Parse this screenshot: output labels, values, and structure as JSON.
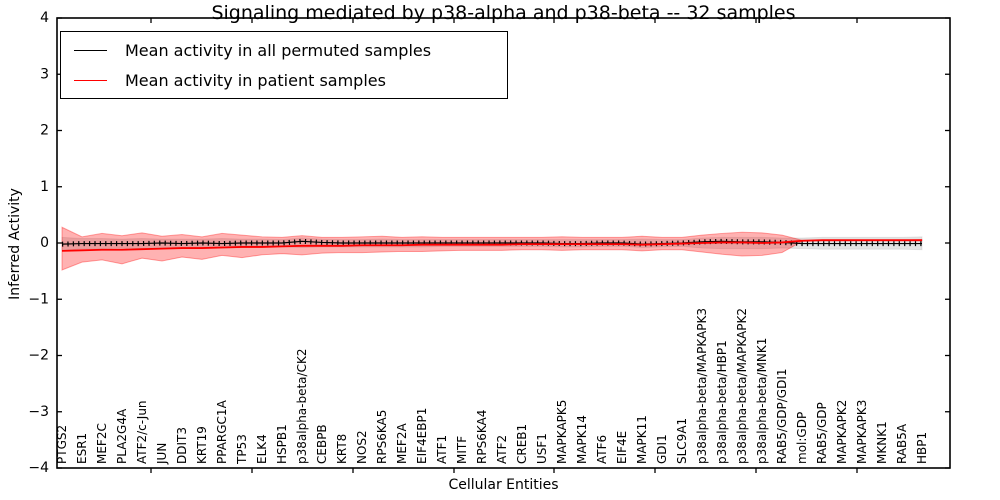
{
  "title": "Signaling mediated by p38-alpha and p38-beta -- 32 samples",
  "legend": [
    {
      "label": "Mean activity in all permuted samples",
      "color": "#000000"
    },
    {
      "label": "Mean activity in patient samples",
      "color": "#ff0000"
    }
  ],
  "chart_data": {
    "type": "line",
    "title": "Signaling mediated by p38-alpha and p38-beta -- 32 samples",
    "xlabel": "Cellular Entities",
    "ylabel": "Inferred Activity",
    "ylim": [
      -4,
      4
    ],
    "yticks": [
      4,
      3,
      2,
      1,
      0,
      -1,
      -2,
      -3,
      -4
    ],
    "grid": false,
    "legend_position": "upper left",
    "categories": [
      "PTGS2",
      "ESR1",
      "MEF2C",
      "PLA2G4A",
      "ATF2/c-Jun",
      "JUN",
      "DDIT3",
      "KRT19",
      "PPARGC1A",
      "TP53",
      "ELK4",
      "HSPB1",
      "p38alpha-beta/CK2",
      "CEBPB",
      "KRT8",
      "NOS2",
      "RPS6KA5",
      "MEF2A",
      "EIF4EBP1",
      "ATF1",
      "MITF",
      "RPS6KA4",
      "ATF2",
      "CREB1",
      "USF1",
      "MAPKAPK5",
      "MAPK14",
      "ATF6",
      "EIF4E",
      "MAPK11",
      "GDI1",
      "SLC9A1",
      "p38alpha-beta/MAPKAPK3",
      "p38alpha-beta/HBP1",
      "p38alpha-beta/MAPKAPK2",
      "p38alpha-beta/MNK1",
      "RAB5/GDP/GDI1",
      "mol:GDP",
      "RAB5/GDP",
      "MAPKAPK2",
      "MAPKAPK3",
      "MKNK1",
      "RAB5A",
      "HBP1"
    ],
    "series": [
      {
        "name": "Mean activity in all permuted samples",
        "color": "#000000",
        "band_color": "rgba(0,0,0,0.11)",
        "values": [
          -0.02,
          -0.01,
          -0.01,
          -0.01,
          -0.01,
          0.0,
          -0.01,
          0.0,
          -0.01,
          0.0,
          0.0,
          0.0,
          0.03,
          0.01,
          0.0,
          0.0,
          0.0,
          0.0,
          0.0,
          0.0,
          0.0,
          0.0,
          0.0,
          0.0,
          0.0,
          -0.01,
          -0.01,
          0.0,
          0.0,
          -0.02,
          -0.01,
          0.0,
          0.02,
          0.03,
          0.02,
          0.02,
          0.01,
          -0.01,
          -0.01,
          -0.01,
          -0.01,
          -0.01,
          -0.01,
          -0.01
        ],
        "band_upper": [
          0.1,
          0.08,
          0.08,
          0.07,
          0.08,
          0.07,
          0.07,
          0.07,
          0.08,
          0.07,
          0.07,
          0.06,
          0.09,
          0.07,
          0.06,
          0.06,
          0.07,
          0.06,
          0.06,
          0.06,
          0.06,
          0.06,
          0.06,
          0.06,
          0.06,
          0.06,
          0.06,
          0.06,
          0.06,
          0.07,
          0.06,
          0.06,
          0.09,
          0.1,
          0.1,
          0.1,
          0.09,
          0.09,
          0.1,
          0.1,
          0.1,
          0.1,
          0.1,
          0.11
        ],
        "band_lower": [
          -0.14,
          -0.1,
          -0.1,
          -0.09,
          -0.1,
          -0.09,
          -0.09,
          -0.09,
          -0.09,
          -0.08,
          -0.08,
          -0.07,
          -0.08,
          -0.07,
          -0.07,
          -0.07,
          -0.07,
          -0.07,
          -0.07,
          -0.06,
          -0.06,
          -0.06,
          -0.06,
          -0.06,
          -0.06,
          -0.07,
          -0.07,
          -0.06,
          -0.06,
          -0.08,
          -0.07,
          -0.06,
          -0.09,
          -0.1,
          -0.1,
          -0.1,
          -0.09,
          -0.1,
          -0.11,
          -0.11,
          -0.11,
          -0.11,
          -0.11,
          -0.12
        ]
      },
      {
        "name": "Mean activity in patient samples",
        "color": "#ff0000",
        "band_color": "rgba(255,0,0,0.30)",
        "values": [
          -0.14,
          -0.13,
          -0.12,
          -0.12,
          -0.11,
          -0.1,
          -0.09,
          -0.09,
          -0.08,
          -0.07,
          -0.07,
          -0.06,
          -0.05,
          -0.05,
          -0.05,
          -0.04,
          -0.04,
          -0.04,
          -0.03,
          -0.03,
          -0.03,
          -0.03,
          -0.03,
          -0.02,
          -0.02,
          -0.02,
          -0.02,
          -0.02,
          -0.02,
          -0.03,
          -0.02,
          -0.01,
          0.0,
          0.01,
          0.01,
          0.0,
          0.01,
          0.04,
          0.05,
          0.05,
          0.05,
          0.05,
          0.05,
          0.05
        ],
        "band_upper": [
          0.28,
          0.11,
          0.17,
          0.13,
          0.18,
          0.12,
          0.15,
          0.11,
          0.17,
          0.14,
          0.11,
          0.1,
          0.13,
          0.1,
          0.1,
          0.11,
          0.12,
          0.1,
          0.11,
          0.1,
          0.1,
          0.1,
          0.1,
          0.1,
          0.1,
          0.11,
          0.1,
          0.1,
          0.1,
          0.12,
          0.1,
          0.1,
          0.14,
          0.17,
          0.19,
          0.18,
          0.14,
          0.05,
          0.05,
          0.05,
          0.05,
          0.05,
          0.05,
          0.06
        ],
        "band_lower": [
          -0.48,
          -0.34,
          -0.3,
          -0.37,
          -0.27,
          -0.32,
          -0.25,
          -0.29,
          -0.22,
          -0.26,
          -0.21,
          -0.19,
          -0.21,
          -0.18,
          -0.17,
          -0.17,
          -0.16,
          -0.15,
          -0.15,
          -0.14,
          -0.13,
          -0.13,
          -0.13,
          -0.12,
          -0.12,
          -0.13,
          -0.12,
          -0.12,
          -0.12,
          -0.14,
          -0.12,
          -0.12,
          -0.16,
          -0.2,
          -0.23,
          -0.22,
          -0.17,
          0.03,
          0.04,
          0.04,
          0.04,
          0.04,
          0.04,
          0.04
        ]
      }
    ]
  }
}
